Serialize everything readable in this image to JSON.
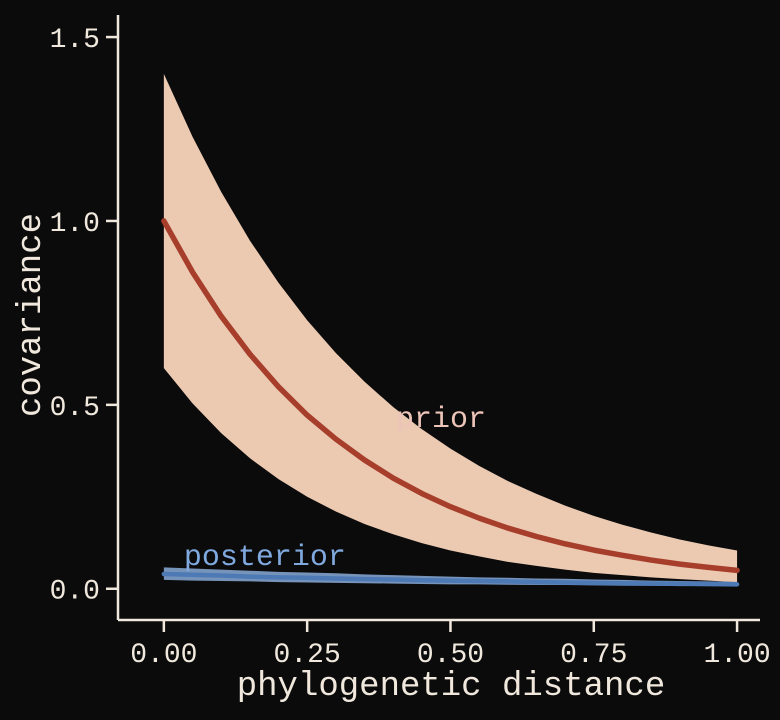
{
  "page": {
    "background": "#0b0b0c"
  },
  "chart_data": {
    "type": "line",
    "title": "",
    "xlabel": "phylogenetic distance",
    "ylabel": "covariance",
    "xlim": [
      -0.08,
      1.04
    ],
    "ylim": [
      -0.085,
      1.56
    ],
    "grid": false,
    "legend": "inline-annotations",
    "axis_color": "#f0e8dc",
    "text_color": "#f0e8dc",
    "xticks": [
      0,
      0.25,
      0.5,
      0.75,
      1
    ],
    "xtick_labels": [
      "0.00",
      "0.25",
      "0.50",
      "0.75",
      "1.00"
    ],
    "yticks": [
      0,
      0.5,
      1,
      1.5
    ],
    "ytick_labels": [
      "0.0",
      "0.5",
      "1.0",
      "1.5"
    ],
    "x": [
      0,
      0.05,
      0.1,
      0.15,
      0.2,
      0.25,
      0.3,
      0.35,
      0.4,
      0.45,
      0.5,
      0.55,
      0.6,
      0.65,
      0.7,
      0.75,
      0.8,
      0.85,
      0.9,
      0.95,
      1
    ],
    "series": [
      {
        "name": "prior",
        "line_color": "#a63e2b",
        "line_width": 5.5,
        "band_color": "#eccab2",
        "band_opacity": 1,
        "mean": [
          1.0,
          0.861,
          0.741,
          0.638,
          0.549,
          0.472,
          0.407,
          0.35,
          0.301,
          0.259,
          0.223,
          0.192,
          0.165,
          0.142,
          0.122,
          0.105,
          0.091,
          0.078,
          0.067,
          0.058,
          0.05
        ],
        "upper": [
          1.4,
          1.229,
          1.079,
          0.947,
          0.832,
          0.73,
          0.641,
          0.563,
          0.494,
          0.434,
          0.381,
          0.334,
          0.293,
          0.258,
          0.226,
          0.198,
          0.174,
          0.153,
          0.134,
          0.118,
          0.104
        ],
        "lower": [
          0.6,
          0.504,
          0.423,
          0.355,
          0.298,
          0.25,
          0.21,
          0.176,
          0.148,
          0.124,
          0.104,
          0.088,
          0.073,
          0.062,
          0.052,
          0.043,
          0.037,
          0.031,
          0.026,
          0.022,
          0.018
        ],
        "label": {
          "text": "prior",
          "x": 0.405,
          "y": 0.44,
          "color": "#ecc4b8",
          "font_size": 30
        }
      },
      {
        "name": "posterior",
        "line_color": "#4d79b5",
        "line_width": 4.5,
        "band_color": "#82a2cd",
        "band_opacity": 0.9,
        "mean": [
          0.04,
          0.038,
          0.036,
          0.033,
          0.031,
          0.03,
          0.028,
          0.026,
          0.025,
          0.023,
          0.022,
          0.021,
          0.02,
          0.018,
          0.017,
          0.016,
          0.015,
          0.014,
          0.014,
          0.013,
          0.012
        ],
        "upper": [
          0.058,
          0.055,
          0.052,
          0.049,
          0.046,
          0.044,
          0.042,
          0.039,
          0.037,
          0.035,
          0.033,
          0.031,
          0.03,
          0.028,
          0.027,
          0.025,
          0.024,
          0.022,
          0.021,
          0.02,
          0.019
        ],
        "lower": [
          0.024,
          0.022,
          0.021,
          0.02,
          0.018,
          0.017,
          0.016,
          0.015,
          0.014,
          0.013,
          0.012,
          0.012,
          0.011,
          0.01,
          0.01,
          0.009,
          0.008,
          0.008,
          0.007,
          0.007,
          0.007
        ],
        "label": {
          "text": "posterior",
          "x": 0.035,
          "y": 0.065,
          "color": "#80aadf",
          "font_size": 30
        }
      }
    ]
  }
}
